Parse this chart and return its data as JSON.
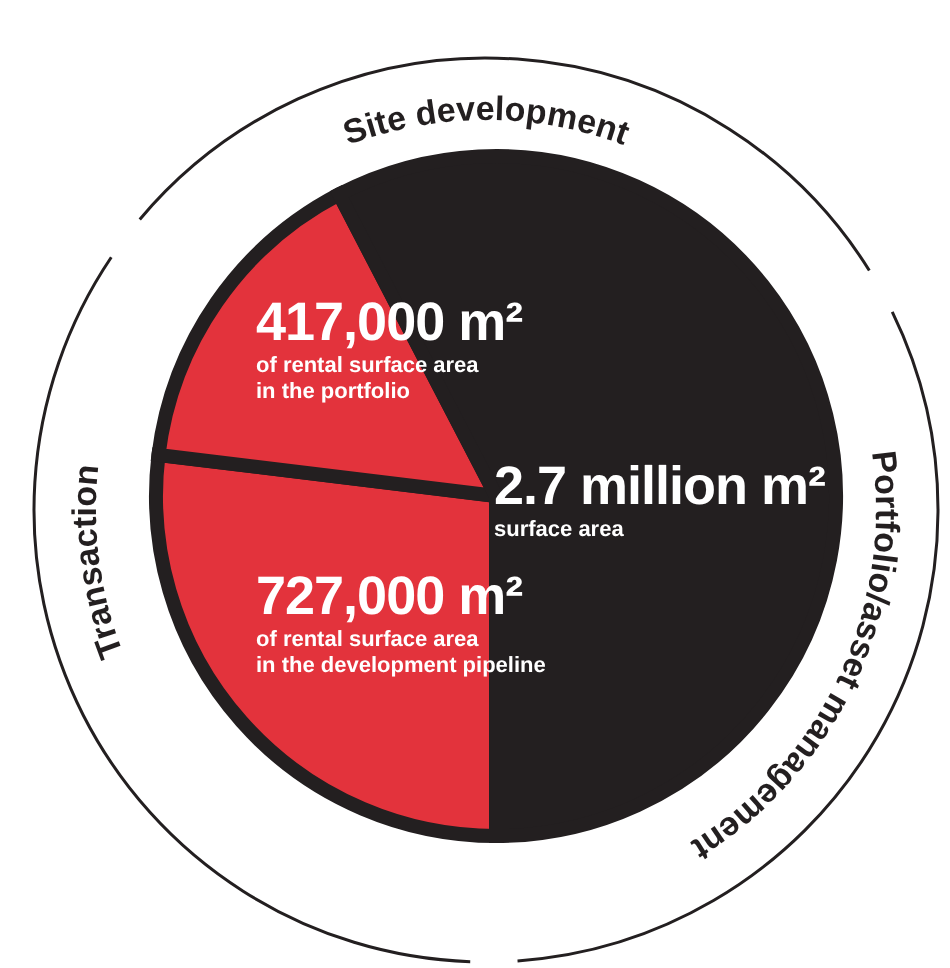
{
  "chart_data": {
    "type": "pie",
    "title": "2.7 million m²",
    "subtitle": "surface area",
    "categories": [
      "of rental surface area\nin the development pipeline",
      "of rental surface area\nin the portfolio",
      null
    ],
    "values": [
      727000,
      417000,
      1556000
    ],
    "value_labels": [
      "727,000 m²",
      "417,000 m²",
      null
    ],
    "colors": [
      "#e3333c",
      "#e3333c",
      "#231f20"
    ],
    "annotations": [
      "Site development",
      "Portfolio/asset management",
      "Transaction"
    ]
  }
}
